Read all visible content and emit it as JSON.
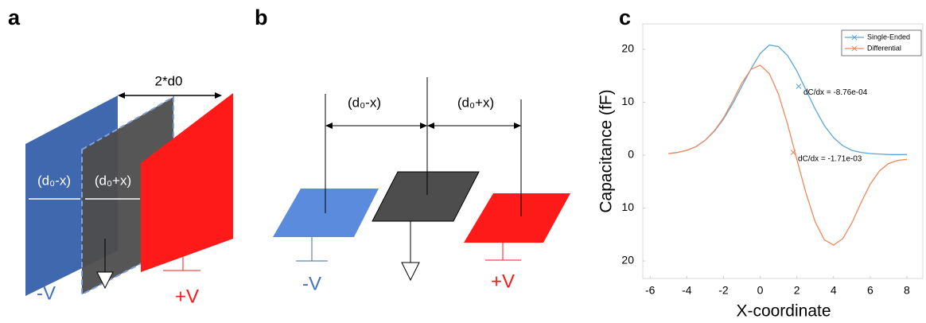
{
  "panel_a": {
    "label": "a",
    "spacing": "2*d0",
    "gap_left": "(d₀-x)",
    "gap_right": "(d₀+x)",
    "minus": "-V",
    "plus": "+V"
  },
  "panel_b": {
    "label": "b",
    "gap_left": "(d₀-x)",
    "gap_right": "(d₀+x)",
    "minus": "-V",
    "plus": "+V"
  },
  "chart_data": {
    "type": "line",
    "label": "c",
    "x_label": "X-coordinate",
    "y_label": "Capacitance (fF)",
    "x": [
      -5,
      -4.5,
      -4,
      -3.5,
      -3,
      -2.5,
      -2,
      -1.5,
      -1,
      -0.5,
      0,
      0.5,
      1,
      1.5,
      2,
      2.5,
      3,
      3.5,
      4,
      4.5,
      5,
      5.5,
      6,
      6.5,
      7,
      7.5,
      8
    ],
    "series": [
      {
        "name": "Single-Ended",
        "color": "#5aa7dc",
        "values": [
          0.3,
          0.5,
          0.9,
          1.6,
          2.8,
          4.5,
          6.8,
          9.7,
          13,
          16.3,
          19.2,
          20.8,
          20.5,
          18.8,
          15.9,
          12.3,
          8.7,
          5.6,
          3.3,
          1.8,
          0.9,
          0.5,
          0.3,
          0.2,
          0.1,
          0.1,
          0.1
        ]
      },
      {
        "name": "Differential",
        "color": "#f0895a",
        "values": [
          0.3,
          0.5,
          0.9,
          1.6,
          2.8,
          4.6,
          7.0,
          10.2,
          13.6,
          16.2,
          17.0,
          15.4,
          11.5,
          5.8,
          -0.8,
          -7.2,
          -12.6,
          -16.0,
          -17.0,
          -15.8,
          -12.8,
          -9.0,
          -5.5,
          -3.0,
          -1.6,
          -1.0,
          -0.8
        ]
      }
    ],
    "annotations": [
      {
        "text": "dC/dx = -8.76e-04",
        "x": 2.1,
        "y": 13,
        "series": 0
      },
      {
        "text": "dC/dx = -1.71e-03",
        "x": 1.8,
        "y": 0.5,
        "series": 1
      }
    ],
    "xlim": [
      -6.4,
      8.87
    ],
    "xticks": [
      -6,
      -4,
      -2,
      0,
      2,
      4,
      6,
      8
    ],
    "ylim": [
      -23.3,
      24.8
    ],
    "yticks": [
      {
        "value": -20,
        "label": "20"
      },
      {
        "value": -10,
        "label": "10"
      },
      0,
      10,
      20
    ],
    "legend": "upper right",
    "grid": false
  }
}
